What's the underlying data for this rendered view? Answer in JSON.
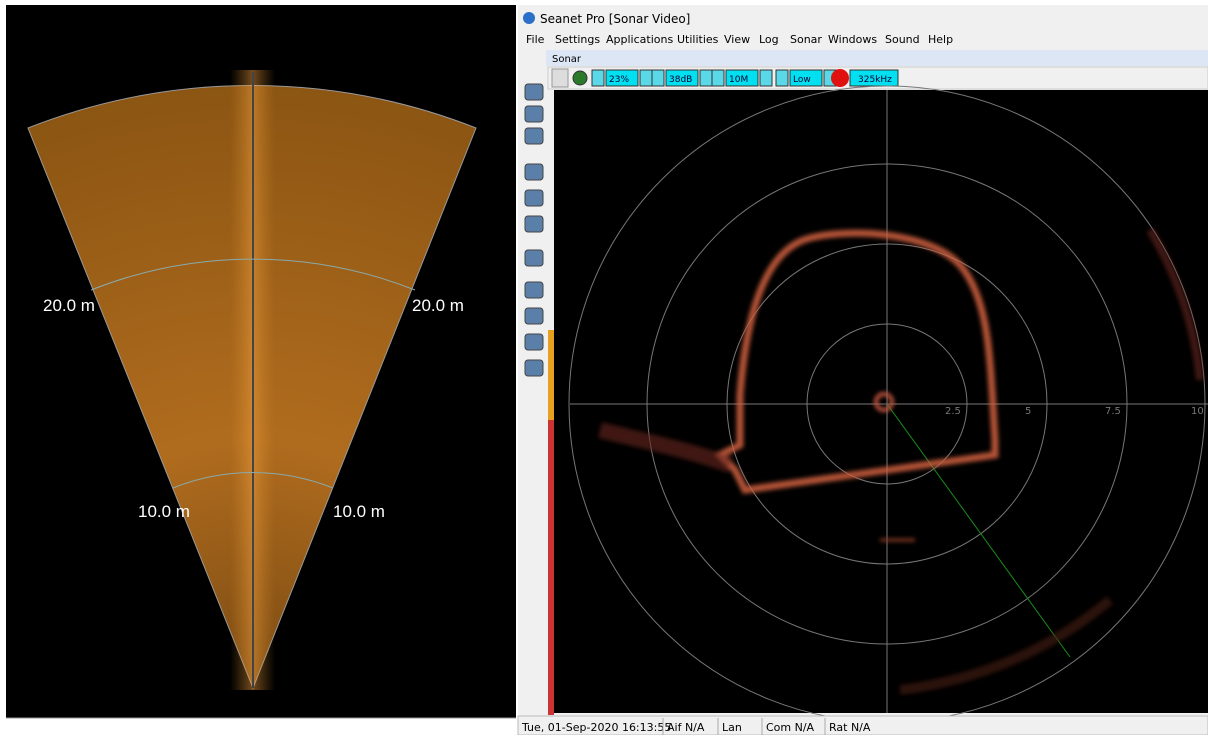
{
  "left_panel": {
    "range_labels": [
      "20.0 m",
      "20.0 m",
      "10.0 m",
      "10.0 m"
    ]
  },
  "window": {
    "title": "Seanet Pro [Sonar Video]",
    "menu": [
      "File",
      "Settings",
      "Applications",
      "Utilities",
      "View",
      "Log",
      "Sonar",
      "Windows",
      "Sound",
      "Help"
    ],
    "tab": "Sonar",
    "toolbar": {
      "gain": "23%",
      "contrast": "38dB",
      "range": "10M",
      "resolution": "Low",
      "frequency": "325kHz"
    },
    "ring_labels": [
      "2.5",
      "5",
      "7.5",
      "10"
    ],
    "status_bar": [
      "Tue, 01-Sep-2020 16:13:55",
      "Aif N/A",
      "Lan",
      "Com N/A",
      "Rat N/A"
    ]
  }
}
